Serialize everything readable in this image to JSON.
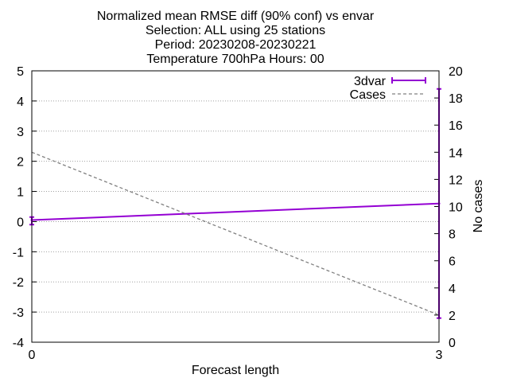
{
  "chart_data": {
    "type": "line",
    "title": [
      "Normalized mean RMSE diff (90% conf) vs envar",
      "Selection: ALL using    25 stations",
      "Period: 20230208-20230221",
      "Temperature 700hPa   Hours: 00"
    ],
    "xlabel": "Forecast length",
    "ylabel": "",
    "y2label": "No cases",
    "xlim": [
      0,
      3
    ],
    "ylim": [
      -4,
      5
    ],
    "y2lim": [
      0,
      20
    ],
    "xticks": [
      "0",
      "3"
    ],
    "yticks": [
      "5",
      "4",
      "3",
      "2",
      "1",
      "0",
      "-1",
      "-2",
      "-3",
      "-4"
    ],
    "y2ticks": [
      "20",
      "18",
      "16",
      "14",
      "12",
      "10",
      "8",
      "6",
      "4",
      "2",
      "0"
    ],
    "grid": true,
    "legend_position": "top-right",
    "series": [
      {
        "name": "3dvar",
        "axis": "y",
        "style": "solid-errorbars",
        "color": "#9400d3",
        "x": [
          0,
          3
        ],
        "y": [
          0.05,
          0.6
        ],
        "err_low": [
          -0.1,
          -3.2
        ],
        "err_high": [
          0.15,
          4.4
        ]
      },
      {
        "name": "Cases",
        "axis": "y2",
        "style": "dashed",
        "color": "#808080",
        "x": [
          0,
          3
        ],
        "y": [
          14,
          2
        ]
      }
    ]
  }
}
